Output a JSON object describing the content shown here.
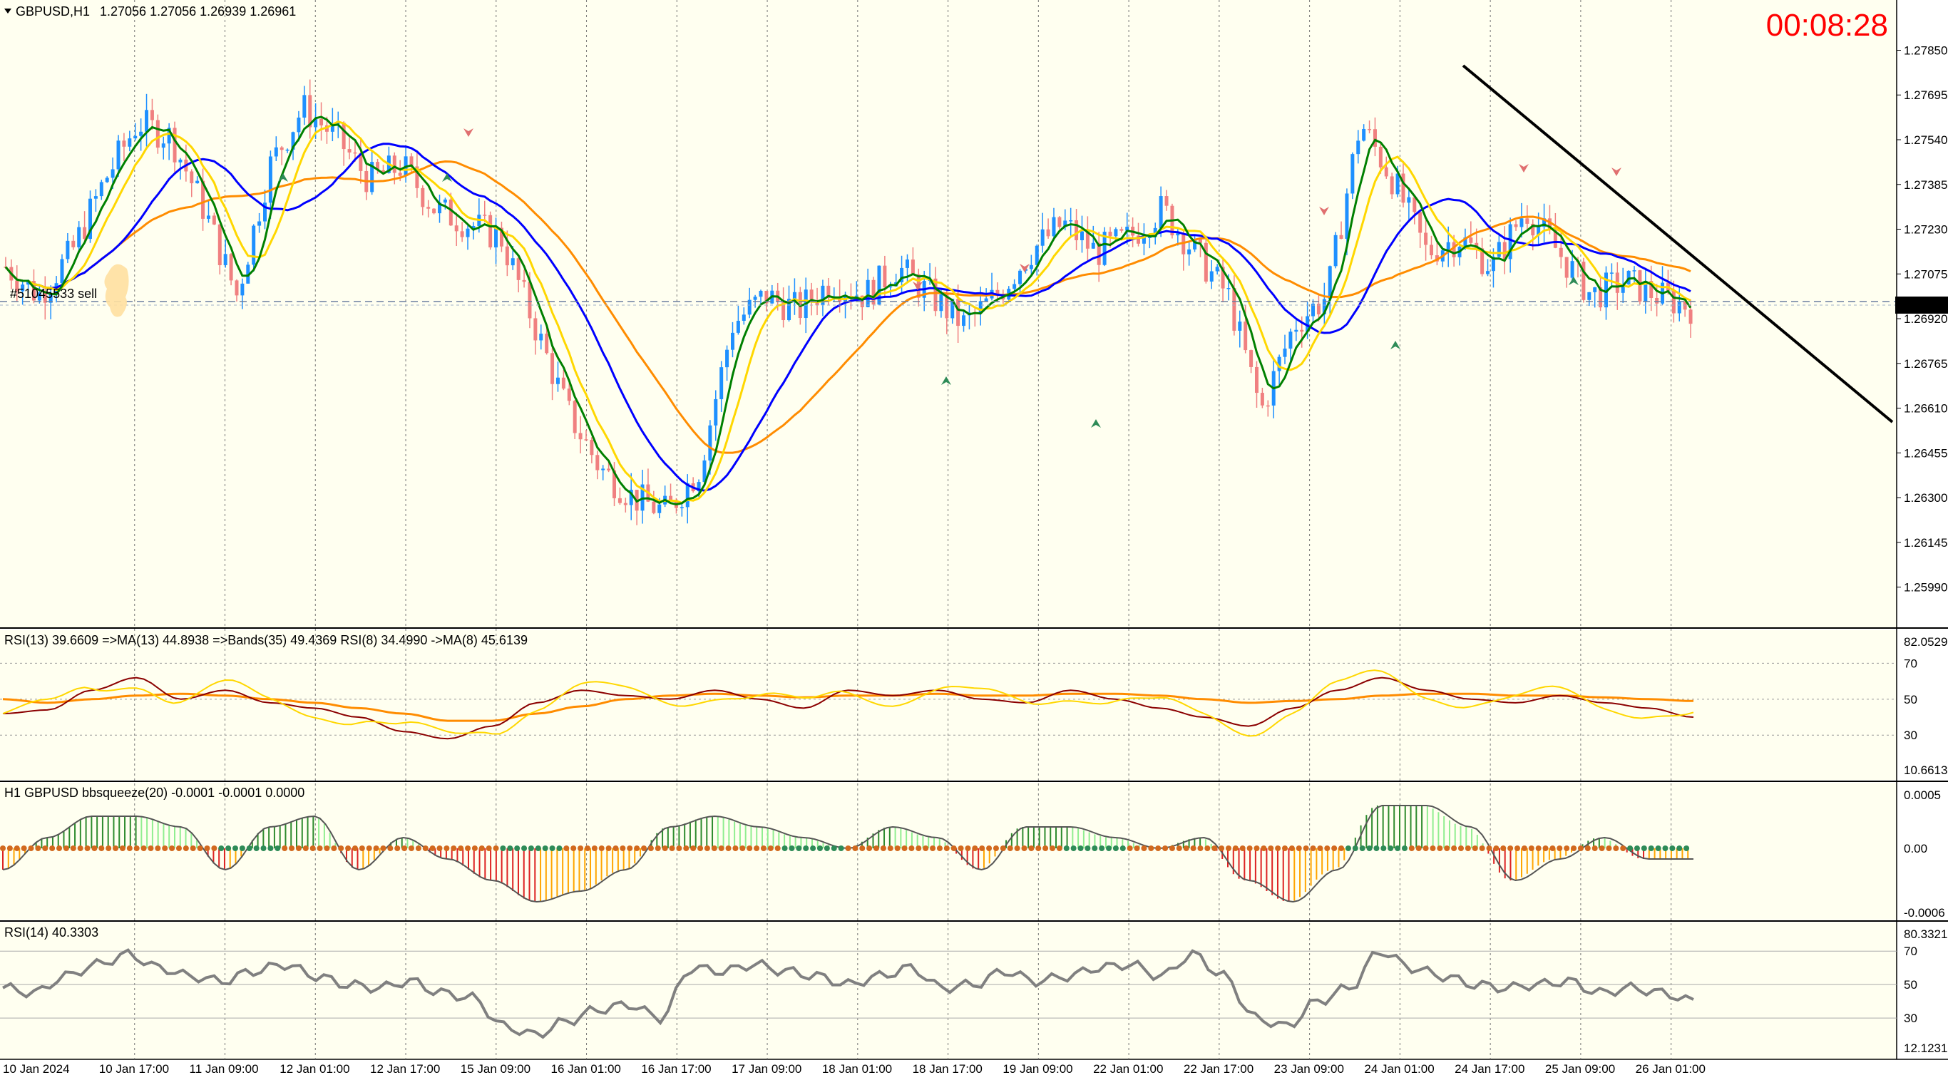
{
  "main": {
    "symbol": "GBPUSD,H1",
    "ohlc": "1.27056 1.27056 1.26939 1.26961",
    "timer": "00:08:28",
    "order_label": "#51045533 sell",
    "current_price": "1.26961",
    "price_ticks": [
      "1.27850",
      "1.27695",
      "1.27540",
      "1.27385",
      "1.27230",
      "1.27075",
      "1.26920",
      "1.26765",
      "1.26610",
      "1.26455",
      "1.26300",
      "1.26145",
      "1.25990"
    ]
  },
  "rsi_ma_panel": {
    "title": "RSI(13) 39.6609  =>MA(13) 44.8938  =>Bands(35) 49.4369  RSI(8) 34.4990  ->MA(8) 45.6139",
    "ticks": [
      "82.0529",
      "70",
      "50",
      "30",
      "10.6613"
    ]
  },
  "bbsqueeze_panel": {
    "title": "H1 GBPUSD bbsqueeze(20) -0.0001 -0.0001 0.0000",
    "ticks": [
      "0.0005",
      "0.00",
      "-0.0006"
    ]
  },
  "rsi_panel": {
    "title": "RSI(14) 40.3303",
    "ticks": [
      "80.3321",
      "70",
      "50",
      "30",
      "12.1231"
    ]
  },
  "time_axis": [
    "10 Jan 2024",
    "10 Jan 17:00",
    "11 Jan 09:00",
    "12 Jan 01:00",
    "12 Jan 17:00",
    "15 Jan 09:00",
    "16 Jan 01:00",
    "16 Jan 17:00",
    "17 Jan 09:00",
    "18 Jan 01:00",
    "18 Jan 17:00",
    "19 Jan 09:00",
    "22 Jan 01:00",
    "22 Jan 17:00",
    "23 Jan 09:00",
    "24 Jan 01:00",
    "24 Jan 17:00",
    "25 Jan 09:00",
    "26 Jan 01:00"
  ],
  "colors": {
    "background": "#fffff0",
    "bull_candle": "#1e90ff",
    "bear_candle": "#f08080",
    "fast_ma": "#008000",
    "mid_ma": "#ffd700",
    "slow_ma": "#0000ff",
    "long_ma": "#ff8c00",
    "trendline": "#000000",
    "timer": "#ff0000"
  },
  "chart_data": [
    {
      "type": "candlestick",
      "title": "GBPUSD,H1",
      "ylim": [
        1.259,
        1.2795
      ],
      "overlays": [
        "moving averages",
        "trendline",
        "sell order level 1.26961"
      ],
      "approx_close_path": [
        1.271,
        1.27,
        1.2715,
        1.274,
        1.276,
        1.2755,
        1.273,
        1.27,
        1.2745,
        1.2765,
        1.2755,
        1.274,
        1.2745,
        1.273,
        1.2725,
        1.272,
        1.269,
        1.266,
        1.264,
        1.263,
        1.2625,
        1.264,
        1.269,
        1.27,
        1.2695,
        1.2705,
        1.27,
        1.271,
        1.27,
        1.269,
        1.27,
        1.2715,
        1.2725,
        1.2715,
        1.272,
        1.273,
        1.2715,
        1.27,
        1.266,
        1.269,
        1.27,
        1.276,
        1.274,
        1.2715,
        1.272,
        1.271,
        1.273,
        1.2715,
        1.27,
        1.2705,
        1.27,
        1.26961
      ]
    },
    {
      "type": "line",
      "title": "RSI(13) 39.6609  =>MA(13) 44.8938  =>Bands(35) 49.4369  RSI(8) 34.4990  ->MA(8) 45.6139",
      "ylim": [
        10.6613,
        82.0529
      ],
      "series": [
        {
          "name": "RSI(13)",
          "values": [
            42,
            44,
            55,
            62,
            50,
            55,
            48,
            45,
            40,
            32,
            28,
            35,
            48,
            55,
            52,
            50,
            55,
            50,
            45,
            55,
            52,
            55,
            50,
            48,
            55,
            50,
            45,
            40,
            35,
            45,
            55,
            62,
            55,
            50,
            48,
            52,
            48,
            45,
            40
          ]
        },
        {
          "name": "Bands(35)",
          "values": [
            50,
            48,
            50,
            52,
            53,
            52,
            50,
            48,
            45,
            42,
            38,
            38,
            42,
            46,
            50,
            52,
            53,
            52,
            51,
            52,
            52,
            53,
            52,
            52,
            53,
            53,
            52,
            50,
            48,
            49,
            50,
            52,
            53,
            53,
            52,
            52,
            51,
            50,
            49
          ]
        }
      ]
    },
    {
      "type": "bar",
      "title": "H1 GBPUSD bbsqueeze(20) -0.0001 -0.0001 0.0000",
      "ylim": [
        -0.0006,
        0.0005
      ],
      "values": [
        -0.0002,
        0.0001,
        0.0003,
        0.0003,
        0.0002,
        -0.0002,
        0.0002,
        0.0003,
        -0.0002,
        0.0001,
        -0.0001,
        -0.0003,
        -0.0005,
        -0.0004,
        -0.0002,
        0.0002,
        0.0003,
        0.0002,
        0.0001,
        0.0,
        0.0002,
        0.0001,
        -0.0002,
        0.0002,
        0.0002,
        0.0001,
        0.0,
        0.0001,
        -0.0003,
        -0.0005,
        -0.0002,
        0.0004,
        0.0004,
        0.0002,
        -0.0003,
        -0.0001,
        0.0001,
        -0.0001,
        -0.0001
      ]
    },
    {
      "type": "line",
      "title": "RSI(14) 40.3303",
      "ylim": [
        12.1231,
        80.3321
      ],
      "series": [
        {
          "name": "RSI(14)",
          "values": [
            48,
            45,
            55,
            62,
            68,
            60,
            55,
            52,
            58,
            62,
            55,
            50,
            48,
            52,
            45,
            42,
            25,
            20,
            28,
            35,
            38,
            30,
            60,
            58,
            62,
            58,
            55,
            50,
            55,
            60,
            48,
            50,
            58,
            52,
            55,
            60,
            62,
            55,
            68,
            55,
            30,
            25,
            40,
            48,
            70,
            60,
            55,
            50,
            48,
            50,
            52,
            45,
            48,
            45,
            40
          ]
        }
      ]
    }
  ]
}
